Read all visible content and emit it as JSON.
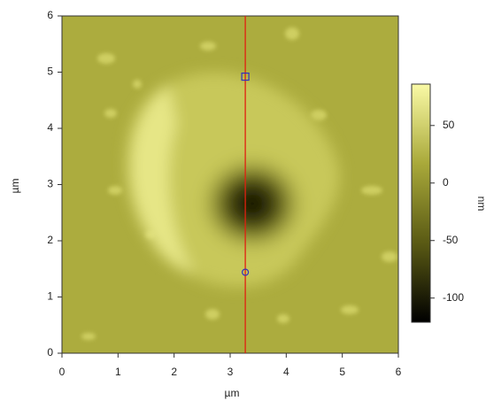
{
  "chart_data": {
    "type": "heatmap",
    "xlabel": "µm",
    "ylabel": "µm",
    "colorbar_label": "nm",
    "xlim": [
      0,
      6
    ],
    "ylim": [
      0,
      6
    ],
    "xticks": [
      0,
      1,
      2,
      3,
      4,
      5,
      6
    ],
    "yticks": [
      0,
      1,
      2,
      3,
      4,
      5,
      6
    ],
    "clim": [
      -121,
      86
    ],
    "cticks": [
      50,
      0,
      -50,
      -100
    ],
    "colormap": [
      "#000000",
      "#5a5a14",
      "#a9a93a",
      "#fafaa6"
    ],
    "line_color": "#e02010",
    "line_x": 3.27,
    "markers": [
      {
        "shape": "square",
        "x": 3.27,
        "y": 4.92
      },
      {
        "shape": "circle",
        "x": 3.27,
        "y": 1.44
      }
    ],
    "marker_color": "#3030c0"
  }
}
